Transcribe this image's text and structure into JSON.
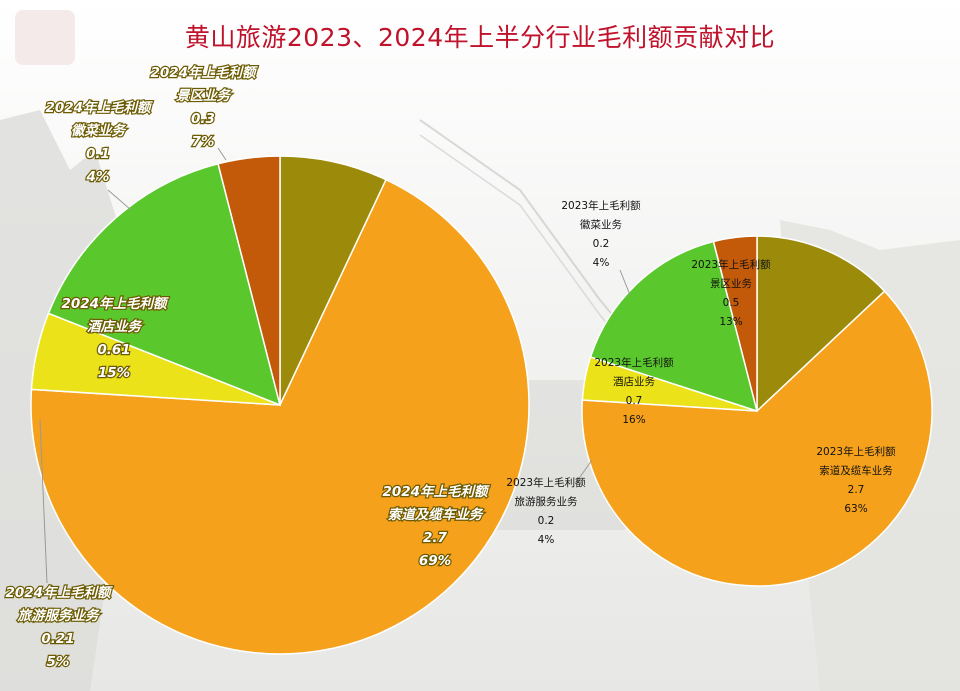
{
  "title": "黄山旅游2023、2024年上半分行业毛利额贡献对比",
  "colors": {
    "title": "#c0122b",
    "cableway": "#f5a11b",
    "travel_service": "#ece21a",
    "hotel": "#5ac82c",
    "hui_cuisine": "#c25a0a",
    "scenic": "#9c8a0a"
  },
  "chart_data": [
    {
      "type": "pie",
      "title": "",
      "label_prefix": "2024年上毛利额",
      "slices": [
        {
          "name": "景区业务",
          "value": 0.3,
          "percent": "7%",
          "color": "#9c8a0a"
        },
        {
          "name": "索道及缆车业务",
          "value": 2.7,
          "percent": "69%",
          "color": "#f5a11b"
        },
        {
          "name": "旅游服务业务",
          "value": 0.21,
          "percent": "5%",
          "color": "#ece21a"
        },
        {
          "name": "酒店业务",
          "value": 0.61,
          "percent": "15%",
          "color": "#5ac82c"
        },
        {
          "name": "徽菜业务",
          "value": 0.1,
          "percent": "4%",
          "color": "#c25a0a"
        }
      ]
    },
    {
      "type": "pie",
      "title": "",
      "label_prefix": "2023年上毛利额",
      "slices": [
        {
          "name": "景区业务",
          "value": 0.5,
          "percent": "13%",
          "color": "#9c8a0a"
        },
        {
          "name": "索道及缆车业务",
          "value": 2.7,
          "percent": "63%",
          "color": "#f5a11b"
        },
        {
          "name": "旅游服务业务",
          "value": 0.2,
          "percent": "4%",
          "color": "#ece21a"
        },
        {
          "name": "酒店业务",
          "value": 0.7,
          "percent": "16%",
          "color": "#5ac82c"
        },
        {
          "name": "徽菜业务",
          "value": 0.2,
          "percent": "4%",
          "color": "#c25a0a"
        }
      ]
    }
  ]
}
